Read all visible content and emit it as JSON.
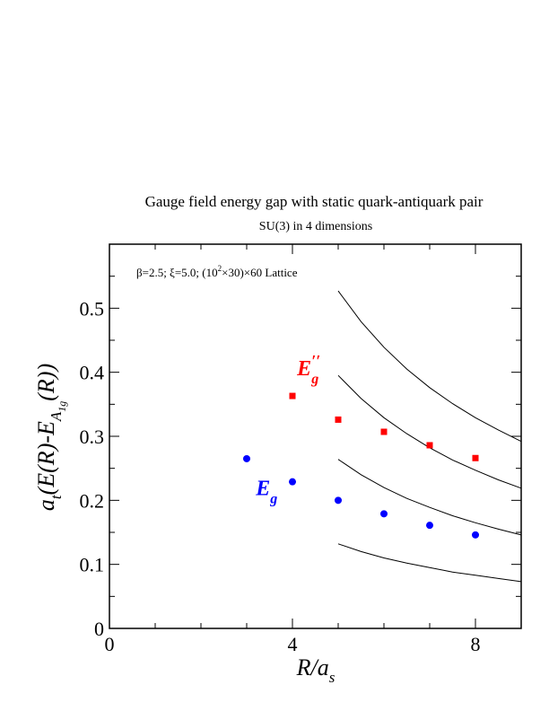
{
  "chart_data": {
    "type": "scatter",
    "title": "Gauge field energy gap with static quark-antiquark pair",
    "subtitle": "SU(3) in 4 dimensions",
    "annotation": {
      "prefix": "β=2.5;  ξ=5.0; (10",
      "superscript": "2",
      "suffix": "×30)×60 Lattice"
    },
    "xlabel": {
      "main": "R/a",
      "sub": "s"
    },
    "ylabel": {
      "a": "a",
      "a_sub": "t",
      "mid": "(E(R)-E",
      "e_sub": "A",
      "e_subsub": "1g",
      "tail": "(R))"
    },
    "xlim": [
      0,
      9
    ],
    "ylim": [
      0,
      0.6
    ],
    "x_ticks": [
      {
        "v": 0,
        "label": "0"
      },
      {
        "v": 4,
        "label": "4"
      },
      {
        "v": 8,
        "label": "8"
      }
    ],
    "y_ticks": [
      {
        "v": 0,
        "label": "0"
      },
      {
        "v": 0.1,
        "label": "0.1"
      },
      {
        "v": 0.2,
        "label": "0.2"
      },
      {
        "v": 0.3,
        "label": "0.3"
      },
      {
        "v": 0.4,
        "label": "0.4"
      },
      {
        "v": 0.5,
        "label": "0.5"
      }
    ],
    "grid": false,
    "series": [
      {
        "name": "E_g",
        "label_main": "E",
        "label_sub": "g",
        "label_prime": "",
        "color": "#0000ff",
        "marker": "circle",
        "x": [
          3,
          4,
          5,
          6,
          7,
          8
        ],
        "y": [
          0.265,
          0.229,
          0.2,
          0.179,
          0.161,
          0.146
        ],
        "label_at": [
          3.2,
          0.208
        ]
      },
      {
        "name": "E''_g",
        "label_main": "E",
        "label_sub": "g",
        "label_prime": "′′",
        "color": "#ff0000",
        "marker": "square",
        "x": [
          4,
          5,
          6,
          7,
          8
        ],
        "y": [
          0.363,
          0.326,
          0.307,
          0.286,
          0.266
        ],
        "label_at": [
          4.1,
          0.395
        ]
      }
    ],
    "curves": [
      {
        "x": [
          5.0,
          5.5,
          6.0,
          6.5,
          7.0,
          7.5,
          8.0,
          8.5,
          9.0
        ],
        "y": [
          0.132,
          0.12,
          0.11,
          0.102,
          0.095,
          0.088,
          0.083,
          0.078,
          0.073
        ]
      },
      {
        "x": [
          5.0,
          5.5,
          6.0,
          6.5,
          7.0,
          7.5,
          8.0,
          8.5,
          9.0
        ],
        "y": [
          0.264,
          0.24,
          0.22,
          0.203,
          0.189,
          0.176,
          0.165,
          0.155,
          0.146
        ]
      },
      {
        "x": [
          5.0,
          5.5,
          6.0,
          6.5,
          7.0,
          7.5,
          8.0,
          8.5,
          9.0
        ],
        "y": [
          0.395,
          0.359,
          0.329,
          0.304,
          0.282,
          0.263,
          0.247,
          0.232,
          0.219
        ]
      },
      {
        "x": [
          5.0,
          5.5,
          6.0,
          6.5,
          7.0,
          7.5,
          8.0,
          8.5,
          9.0
        ],
        "y": [
          0.527,
          0.479,
          0.439,
          0.405,
          0.376,
          0.351,
          0.329,
          0.31,
          0.292
        ]
      }
    ]
  }
}
